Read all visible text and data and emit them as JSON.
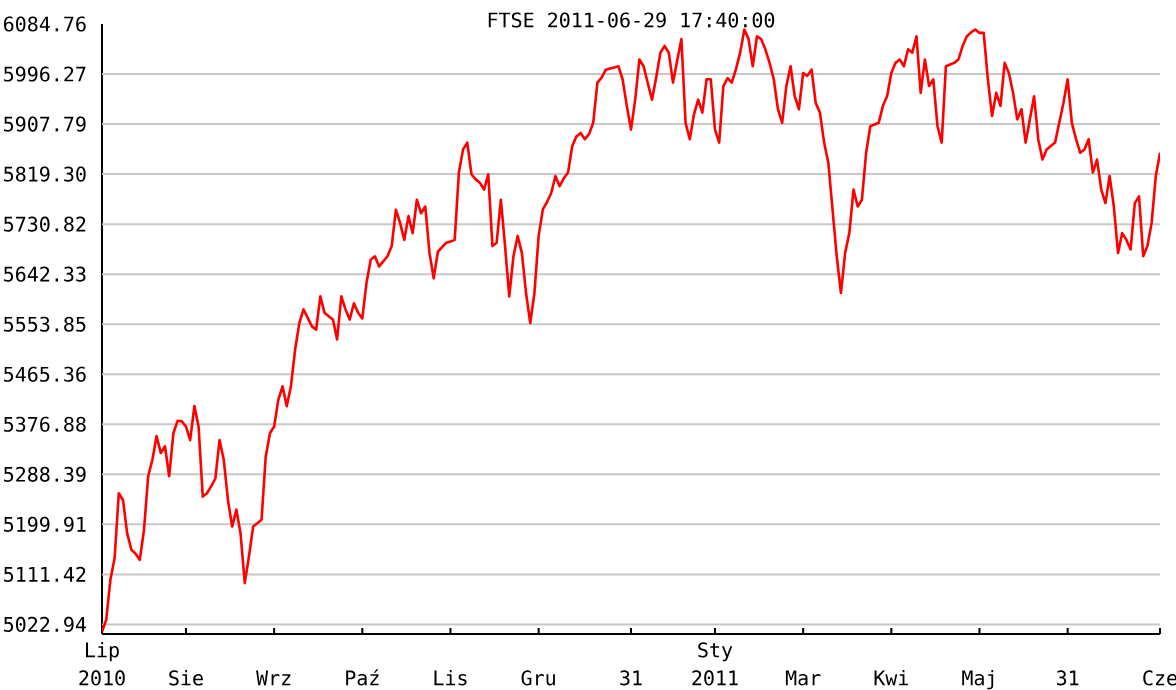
{
  "chart_data": {
    "type": "line",
    "title": "FTSE 2011-06-29 17:40:00",
    "categories": [
      "Lip 2010",
      null,
      null,
      null,
      null,
      null,
      null,
      null,
      null,
      null,
      null,
      null,
      null,
      null,
      null,
      null,
      null,
      null,
      null,
      null,
      "Sie",
      null,
      null,
      null,
      null,
      null,
      null,
      null,
      null,
      null,
      null,
      null,
      null,
      null,
      null,
      null,
      null,
      null,
      null,
      null,
      null,
      "Wrz",
      null,
      null,
      null,
      null,
      null,
      null,
      null,
      null,
      null,
      null,
      null,
      null,
      null,
      null,
      null,
      null,
      null,
      null,
      null,
      null,
      "Paź",
      null,
      null,
      null,
      null,
      null,
      null,
      null,
      null,
      null,
      null,
      null,
      null,
      null,
      null,
      null,
      null,
      null,
      null,
      null,
      null,
      "Lis",
      null,
      null,
      null,
      null,
      null,
      null,
      null,
      null,
      null,
      null,
      null,
      null,
      null,
      null,
      null,
      null,
      null,
      null,
      null,
      null,
      "Gru",
      null,
      null,
      null,
      null,
      null,
      null,
      null,
      null,
      null,
      null,
      null,
      null,
      null,
      null,
      null,
      null,
      null,
      null,
      null,
      null,
      null,
      "31",
      null,
      null,
      null,
      null,
      null,
      null,
      null,
      null,
      null,
      null,
      null,
      null,
      null,
      null,
      null,
      null,
      null,
      null,
      null,
      "Sty 2011",
      null,
      null,
      null,
      null,
      null,
      null,
      null,
      null,
      null,
      null,
      null,
      null,
      null,
      null,
      null,
      null,
      null,
      null,
      null,
      null,
      "Mar",
      null,
      null,
      null,
      null,
      null,
      null,
      null,
      null,
      null,
      null,
      null,
      null,
      null,
      null,
      null,
      null,
      null,
      null,
      null,
      null,
      "Kwi",
      null,
      null,
      null,
      null,
      null,
      null,
      null,
      null,
      null,
      null,
      null,
      null,
      null,
      null,
      null,
      null,
      null,
      null,
      null,
      null,
      "Maj",
      null,
      null,
      null,
      null,
      null,
      null,
      null,
      null,
      null,
      null,
      null,
      null,
      null,
      null,
      null,
      null,
      null,
      null,
      null,
      null,
      "31",
      null,
      null,
      null,
      null,
      null,
      null,
      null,
      null,
      null,
      null,
      null,
      null,
      null,
      null,
      null,
      null,
      null,
      null,
      null,
      null,
      null,
      "Cze"
    ],
    "series": [
      {
        "color": "#ff0000",
        "line_style": "solid",
        "values": [
          5010,
          5031,
          5102,
          5140,
          5255,
          5243,
          5184,
          5155,
          5148,
          5137,
          5190,
          5285,
          5314,
          5356,
          5326,
          5338,
          5285,
          5361,
          5383,
          5382,
          5373,
          5349,
          5409,
          5373,
          5249,
          5255,
          5267,
          5281,
          5349,
          5314,
          5243,
          5196,
          5226,
          5184,
          5096,
          5143,
          5196,
          5202,
          5208,
          5320,
          5361,
          5373,
          5420,
          5444,
          5409,
          5444,
          5509,
          5556,
          5580,
          5565,
          5550,
          5544,
          5603,
          5574,
          5568,
          5562,
          5527,
          5603,
          5580,
          5562,
          5591,
          5574,
          5564,
          5627,
          5668,
          5674,
          5656,
          5665,
          5674,
          5692,
          5756,
          5733,
          5703,
          5745,
          5715,
          5774,
          5750,
          5762,
          5680,
          5635,
          5682,
          5690,
          5698,
          5700,
          5703,
          5822,
          5863,
          5875,
          5819,
          5810,
          5804,
          5792,
          5819,
          5692,
          5698,
          5774,
          5692,
          5603,
          5674,
          5710,
          5680,
          5609,
          5556,
          5609,
          5710,
          5757,
          5770,
          5786,
          5816,
          5798,
          5812,
          5822,
          5869,
          5886,
          5892,
          5881,
          5890,
          5910,
          5981,
          5990,
          6004,
          6006,
          6008,
          6010,
          5987,
          5940,
          5898,
          5951,
          6022,
          6010,
          5980,
          5951,
          5990,
          6034,
          6046,
          6034,
          5981,
          6020,
          6058,
          5910,
          5881,
          5925,
          5951,
          5928,
          5987,
          5987,
          5898,
          5875,
          5975,
          5989,
          5981,
          6005,
          6034,
          6075,
          6058,
          6010,
          6063,
          6058,
          6040,
          6016,
          5987,
          5934,
          5910,
          5975,
          6010,
          5957,
          5934,
          5998,
          5993,
          6004,
          5945,
          5928,
          5875,
          5839,
          5757,
          5674,
          5609,
          5680,
          5715,
          5792,
          5762,
          5774,
          5857,
          5904,
          5907,
          5910,
          5940,
          5957,
          5998,
          6016,
          6022,
          6010,
          6040,
          6034,
          6063,
          5963,
          6022,
          5975,
          5987,
          5904,
          5875,
          6010,
          6013,
          6016,
          6022,
          6046,
          6063,
          6070,
          6075,
          6069,
          6069,
          5987,
          5922,
          5963,
          5940,
          6016,
          5998,
          5963,
          5916,
          5934,
          5875,
          5916,
          5957,
          5881,
          5845,
          5863,
          5869,
          5875,
          5910,
          5945,
          5987,
          5910,
          5881,
          5857,
          5863,
          5881,
          5822,
          5845,
          5792,
          5768,
          5816,
          5762,
          5680,
          5715,
          5703,
          5686,
          5768,
          5780,
          5674,
          5692,
          5733,
          5816,
          5857
        ]
      }
    ],
    "ylim": [
      5006,
      6084.76
    ],
    "yticks": [
      5022.94,
      5111.42,
      5199.91,
      5288.39,
      5376.88,
      5465.36,
      5553.85,
      5642.33,
      5730.82,
      {
        "value": 5819.3,
        "label": "5819.30"
      },
      5907.79,
      5996.27,
      6084.76
    ],
    "grid": "y"
  }
}
